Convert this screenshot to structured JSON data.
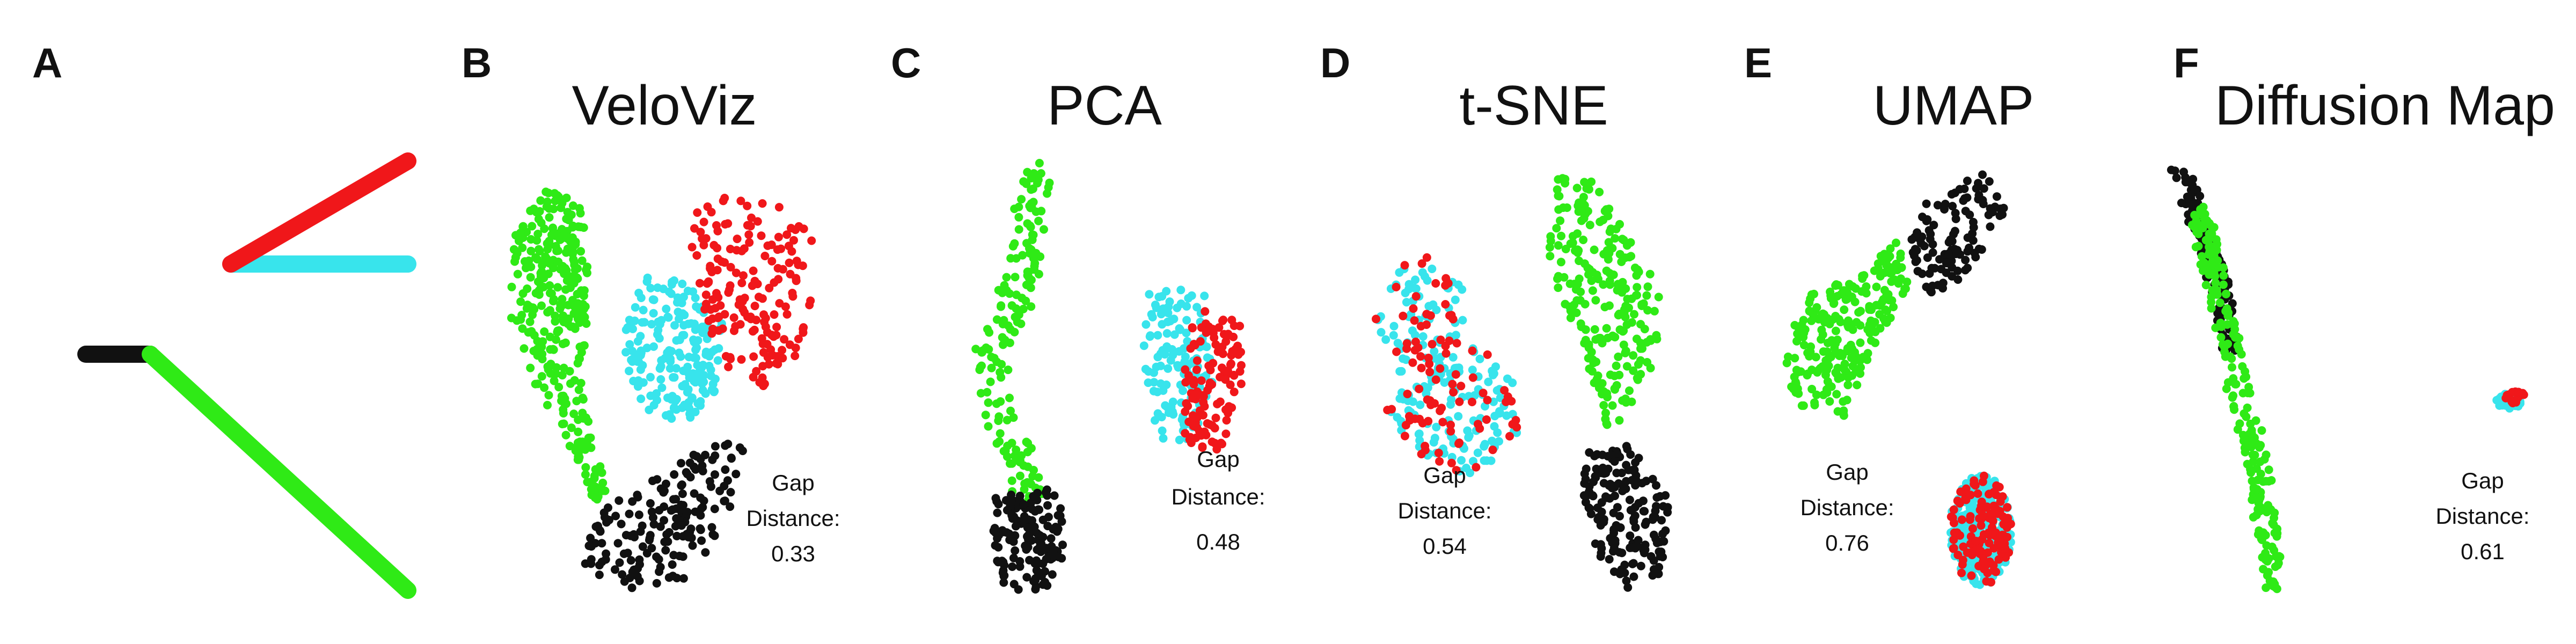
{
  "colors": {
    "black": "#111111",
    "green": "#2fea16",
    "red": "#f0171a",
    "cyan": "#38e4ec"
  },
  "panels": [
    {
      "letter": "A",
      "title": "",
      "gap_label": "",
      "gap_distance_label": "",
      "gap_value": null
    },
    {
      "letter": "B",
      "title": "VeloViz",
      "gap_label": "Gap",
      "gap_distance_label": "Distance:",
      "gap_value": 0.33
    },
    {
      "letter": "C",
      "title": "PCA",
      "gap_label": "Gap",
      "gap_distance_label": "Distance:",
      "gap_value": 0.48
    },
    {
      "letter": "D",
      "title": "t-SNE",
      "gap_label": "Gap",
      "gap_distance_label": "Distance:",
      "gap_value": 0.54
    },
    {
      "letter": "E",
      "title": "UMAP",
      "gap_label": "Gap",
      "gap_distance_label": "Distance:",
      "gap_value": 0.76
    },
    {
      "letter": "F",
      "title": "Diffusion Map",
      "gap_label": "Gap",
      "gap_distance_label": "Distance:",
      "gap_value": 0.61
    }
  ],
  "chart_data": [
    {
      "type": "line",
      "panel": "A",
      "description_visible": false,
      "series": [
        {
          "color_key": "black",
          "points": [
            [
              0.0,
              0.55
            ],
            [
              0.2,
              0.55
            ]
          ]
        },
        {
          "color_key": "green",
          "points": [
            [
              0.2,
              0.55
            ],
            [
              1.0,
              0.0
            ]
          ]
        },
        {
          "color_key": "cyan",
          "points": [
            [
              0.45,
              0.76
            ],
            [
              1.0,
              0.76
            ]
          ]
        },
        {
          "color_key": "red",
          "points": [
            [
              0.45,
              0.76
            ],
            [
              1.0,
              1.0
            ]
          ]
        }
      ]
    },
    {
      "type": "scatter",
      "panel": "B",
      "clusters": [
        {
          "color_key": "green",
          "count": 320,
          "shape": "polygon",
          "polygon": [
            [
              0.1,
              0.94
            ],
            [
              0.22,
              0.9
            ],
            [
              0.24,
              0.7
            ],
            [
              0.22,
              0.48
            ],
            [
              0.26,
              0.32
            ],
            [
              0.3,
              0.24
            ],
            [
              0.26,
              0.2
            ],
            [
              0.16,
              0.36
            ],
            [
              0.06,
              0.5
            ],
            [
              0.0,
              0.64
            ],
            [
              0.01,
              0.82
            ]
          ]
        },
        {
          "color_key": "cyan",
          "count": 190,
          "shape": "polygon",
          "polygon": [
            [
              0.4,
              0.73
            ],
            [
              0.54,
              0.72
            ],
            [
              0.64,
              0.62
            ],
            [
              0.62,
              0.46
            ],
            [
              0.52,
              0.37
            ],
            [
              0.4,
              0.42
            ],
            [
              0.34,
              0.54
            ],
            [
              0.35,
              0.66
            ]
          ]
        },
        {
          "color_key": "red",
          "count": 175,
          "shape": "polygon",
          "polygon": [
            [
              0.56,
              0.92
            ],
            [
              0.78,
              0.91
            ],
            [
              0.92,
              0.84
            ],
            [
              0.9,
              0.6
            ],
            [
              0.8,
              0.47
            ],
            [
              0.68,
              0.48
            ],
            [
              0.6,
              0.6
            ],
            [
              0.54,
              0.78
            ]
          ]
        },
        {
          "color_key": "black",
          "count": 170,
          "shape": "polygon",
          "polygon": [
            [
              0.26,
              0.2
            ],
            [
              0.44,
              0.26
            ],
            [
              0.62,
              0.35
            ],
            [
              0.72,
              0.34
            ],
            [
              0.64,
              0.14
            ],
            [
              0.52,
              0.02
            ],
            [
              0.34,
              0.0
            ],
            [
              0.22,
              0.06
            ]
          ]
        }
      ]
    },
    {
      "type": "scatter",
      "panel": "C",
      "clusters": [
        {
          "color_key": "green",
          "count": 160,
          "shape": "band",
          "band": [
            [
              0.26,
              0.98
            ],
            [
              0.26,
              0.9
            ],
            [
              0.22,
              0.72
            ],
            [
              0.14,
              0.55
            ],
            [
              0.16,
              0.4
            ],
            [
              0.22,
              0.3
            ],
            [
              0.24,
              0.2
            ]
          ],
          "width": 0.05
        },
        {
          "color_key": "black",
          "count": 150,
          "shape": "polygon",
          "polygon": [
            [
              0.15,
              0.22
            ],
            [
              0.33,
              0.24
            ],
            [
              0.36,
              0.1
            ],
            [
              0.3,
              0.0
            ],
            [
              0.18,
              0.0
            ],
            [
              0.12,
              0.1
            ]
          ]
        },
        {
          "color_key": "cyan",
          "count": 130,
          "shape": "polygon",
          "polygon": [
            [
              0.58,
              0.7
            ],
            [
              0.76,
              0.7
            ],
            [
              0.78,
              0.48
            ],
            [
              0.72,
              0.34
            ],
            [
              0.62,
              0.35
            ],
            [
              0.58,
              0.5
            ]
          ]
        },
        {
          "color_key": "red",
          "count": 115,
          "shape": "polygon",
          "polygon": [
            [
              0.72,
              0.66
            ],
            [
              0.86,
              0.63
            ],
            [
              0.87,
              0.45
            ],
            [
              0.8,
              0.32
            ],
            [
              0.7,
              0.34
            ],
            [
              0.7,
              0.52
            ]
          ]
        }
      ]
    },
    {
      "type": "scatter",
      "panel": "D",
      "clusters": [
        {
          "color_key": "cyan",
          "count": 190,
          "shape": "polygon",
          "polygon": [
            [
              0.04,
              0.74
            ],
            [
              0.16,
              0.78
            ],
            [
              0.28,
              0.7
            ],
            [
              0.26,
              0.58
            ],
            [
              0.4,
              0.52
            ],
            [
              0.42,
              0.36
            ],
            [
              0.3,
              0.26
            ],
            [
              0.14,
              0.3
            ],
            [
              0.02,
              0.4
            ],
            [
              0.08,
              0.52
            ],
            [
              0.0,
              0.62
            ]
          ]
        },
        {
          "color_key": "red",
          "count": 95,
          "shape": "polygon",
          "polygon": [
            [
              0.04,
              0.76
            ],
            [
              0.16,
              0.78
            ],
            [
              0.28,
              0.7
            ],
            [
              0.26,
              0.58
            ],
            [
              0.4,
              0.52
            ],
            [
              0.42,
              0.36
            ],
            [
              0.3,
              0.26
            ],
            [
              0.14,
              0.3
            ],
            [
              0.02,
              0.4
            ],
            [
              0.08,
              0.52
            ],
            [
              0.0,
              0.62
            ]
          ]
        },
        {
          "color_key": "green",
          "count": 230,
          "shape": "polygon",
          "polygon": [
            [
              0.52,
              0.96
            ],
            [
              0.66,
              0.96
            ],
            [
              0.74,
              0.82
            ],
            [
              0.84,
              0.7
            ],
            [
              0.82,
              0.52
            ],
            [
              0.76,
              0.44
            ],
            [
              0.7,
              0.32
            ],
            [
              0.66,
              0.44
            ],
            [
              0.6,
              0.56
            ],
            [
              0.52,
              0.7
            ],
            [
              0.5,
              0.84
            ]
          ]
        },
        {
          "color_key": "black",
          "count": 170,
          "shape": "polygon",
          "polygon": [
            [
              0.62,
              0.32
            ],
            [
              0.74,
              0.34
            ],
            [
              0.86,
              0.22
            ],
            [
              0.84,
              0.04
            ],
            [
              0.74,
              0.0
            ],
            [
              0.64,
              0.08
            ],
            [
              0.6,
              0.2
            ]
          ]
        }
      ]
    },
    {
      "type": "scatter",
      "panel": "E",
      "clusters": [
        {
          "color_key": "black",
          "count": 110,
          "shape": "polygon",
          "polygon": [
            [
              0.42,
              0.9
            ],
            [
              0.58,
              0.99
            ],
            [
              0.66,
              0.9
            ],
            [
              0.56,
              0.74
            ],
            [
              0.42,
              0.68
            ],
            [
              0.36,
              0.78
            ]
          ]
        },
        {
          "color_key": "green",
          "count": 240,
          "shape": "polygon",
          "polygon": [
            [
              0.06,
              0.68
            ],
            [
              0.24,
              0.74
            ],
            [
              0.34,
              0.82
            ],
            [
              0.4,
              0.74
            ],
            [
              0.26,
              0.56
            ],
            [
              0.18,
              0.4
            ],
            [
              0.06,
              0.42
            ],
            [
              0.0,
              0.52
            ]
          ]
        },
        {
          "color_key": "cyan",
          "count": 250,
          "shape": "ellipse",
          "cx": 0.58,
          "cy": 0.14,
          "rx": 0.09,
          "ry": 0.13
        },
        {
          "color_key": "red",
          "count": 120,
          "shape": "ellipse",
          "cx": 0.58,
          "cy": 0.14,
          "rx": 0.09,
          "ry": 0.13
        }
      ]
    },
    {
      "type": "scatter",
      "panel": "F",
      "clusters": [
        {
          "color_key": "black",
          "count": 120,
          "shape": "band",
          "band": [
            [
              0.0,
              0.98
            ],
            [
              0.06,
              0.84
            ],
            [
              0.12,
              0.68
            ],
            [
              0.14,
              0.56
            ]
          ],
          "width": 0.025
        },
        {
          "color_key": "green",
          "count": 220,
          "shape": "band",
          "band": [
            [
              0.05,
              0.9
            ],
            [
              0.12,
              0.64
            ],
            [
              0.16,
              0.46
            ],
            [
              0.21,
              0.3
            ],
            [
              0.24,
              0.1
            ],
            [
              0.25,
              0.0
            ]
          ],
          "width": 0.03
        },
        {
          "color_key": "cyan",
          "count": 35,
          "shape": "ellipse",
          "cx": 0.88,
          "cy": 0.44,
          "rx": 0.035,
          "ry": 0.018
        },
        {
          "color_key": "red",
          "count": 14,
          "shape": "ellipse",
          "cx": 0.9,
          "cy": 0.45,
          "rx": 0.03,
          "ry": 0.015
        }
      ]
    }
  ]
}
